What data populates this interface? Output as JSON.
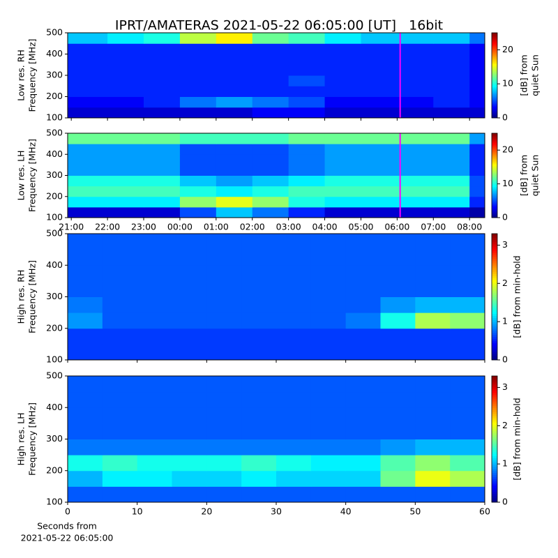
{
  "title": "IPRT/AMATERAS 2021-05-22 06:05:00 [UT]   16bit",
  "chart_data": [
    {
      "type": "heatmap",
      "colormap": "jet",
      "ylabel": [
        "Low res. RH",
        "Frequency [MHz]"
      ],
      "colorbar_label": [
        "[dB] from",
        "quiet Sun"
      ],
      "sharex": 1,
      "x_bins": [
        -3.1,
        -2,
        -1,
        0,
        1,
        2,
        3,
        4,
        5,
        6,
        7,
        8,
        8.42
      ],
      "y_bins": [
        100,
        150,
        200,
        250,
        300,
        350,
        400,
        450,
        500
      ],
      "z": [
        [
          2,
          2,
          2,
          2,
          2,
          3,
          3,
          2,
          2,
          2,
          2,
          2
        ],
        [
          3,
          3,
          4,
          6,
          7,
          6,
          5,
          3,
          3,
          3,
          4,
          3
        ],
        [
          4,
          4,
          4,
          4,
          4,
          4,
          4,
          4,
          4,
          4,
          4,
          3
        ],
        [
          4,
          4,
          4,
          4,
          4,
          4,
          5,
          4,
          4,
          4,
          4,
          3
        ],
        [
          4,
          4,
          4,
          4,
          4,
          4,
          4,
          4,
          4,
          4,
          4,
          3
        ],
        [
          4,
          4,
          4,
          4,
          4,
          4,
          4,
          4,
          4,
          4,
          4,
          3
        ],
        [
          4,
          4,
          4,
          4,
          4,
          4,
          4,
          4,
          4,
          4,
          4,
          3
        ],
        [
          8,
          9,
          10,
          14,
          16,
          12,
          11,
          9,
          8,
          8,
          8,
          6
        ]
      ],
      "ylim": [
        100,
        500
      ],
      "yticks": [
        100,
        200,
        300,
        400,
        500
      ],
      "clim": [
        0,
        25
      ],
      "cticks": [
        0,
        10,
        20
      ],
      "marker_time": 6.083,
      "marker_color": "#ff00ff"
    },
    {
      "type": "heatmap",
      "colormap": "jet",
      "ylabel": [
        "Low res. LH",
        "Frequency [MHz]"
      ],
      "colorbar_label": [
        "[dB] from",
        "quiet Sun"
      ],
      "x_bins": [
        -3.1,
        -2,
        -1,
        0,
        1,
        2,
        3,
        4,
        5,
        6,
        7,
        8,
        8.42
      ],
      "y_bins": [
        100,
        150,
        200,
        250,
        300,
        350,
        400,
        450,
        500
      ],
      "z": [
        [
          2,
          2,
          2,
          5,
          8,
          6,
          4,
          2,
          2,
          2,
          2,
          1
        ],
        [
          9,
          9,
          9,
          13,
          15,
          13,
          10,
          9,
          9,
          9,
          9,
          4
        ],
        [
          11,
          11,
          11,
          10,
          9,
          10,
          11,
          11,
          11,
          11,
          11,
          5
        ],
        [
          10,
          10,
          10,
          8,
          7,
          8,
          9,
          10,
          10,
          10,
          10,
          5
        ],
        [
          7,
          7,
          7,
          5,
          5,
          5,
          6,
          7,
          7,
          7,
          7,
          4
        ],
        [
          7,
          7,
          7,
          5,
          5,
          5,
          6,
          7,
          7,
          7,
          7,
          4
        ],
        [
          7,
          7,
          7,
          5,
          5,
          5,
          6,
          7,
          7,
          7,
          7,
          4
        ],
        [
          12,
          12,
          12,
          11,
          11,
          11,
          12,
          12,
          12,
          12,
          12,
          7
        ]
      ],
      "xlim": [
        -3.1,
        8.42
      ],
      "xticks": [
        {
          "value": -3,
          "label": "21:00"
        },
        {
          "value": -2,
          "label": "22:00"
        },
        {
          "value": -1,
          "label": "23:00"
        },
        {
          "value": 0,
          "label": "00:00"
        },
        {
          "value": 1,
          "label": "01:00"
        },
        {
          "value": 2,
          "label": "02:00"
        },
        {
          "value": 3,
          "label": "03:00"
        },
        {
          "value": 4,
          "label": "04:00"
        },
        {
          "value": 5,
          "label": "05:00"
        },
        {
          "value": 6,
          "label": "06:00"
        },
        {
          "value": 7,
          "label": "07:00"
        },
        {
          "value": 8,
          "label": "08:00"
        }
      ],
      "ylim": [
        100,
        500
      ],
      "yticks": [
        100,
        200,
        300,
        400,
        500
      ],
      "clim": [
        0,
        25
      ],
      "cticks": [
        0,
        10,
        20
      ],
      "marker_time": 6.083,
      "marker_color": "#ff00ff"
    },
    {
      "type": "heatmap",
      "colormap": "jet",
      "ylabel": [
        "High res. RH",
        "Frequency [MHz]"
      ],
      "colorbar_label": [
        "[dB] from min-hold"
      ],
      "sharex": 3,
      "x_bins": [
        0,
        5,
        10,
        15,
        20,
        25,
        30,
        35,
        40,
        45,
        50,
        55,
        60
      ],
      "y_bins": [
        100,
        150,
        200,
        250,
        300,
        350,
        400,
        450,
        500
      ],
      "z": [
        [
          0.6,
          0.6,
          0.6,
          0.6,
          0.6,
          0.6,
          0.6,
          0.6,
          0.6,
          0.6,
          0.6,
          0.6
        ],
        [
          0.6,
          0.6,
          0.6,
          0.6,
          0.6,
          0.6,
          0.6,
          0.6,
          0.6,
          0.6,
          0.6,
          0.6
        ],
        [
          0.9,
          0.7,
          0.7,
          0.7,
          0.7,
          0.7,
          0.7,
          0.7,
          0.8,
          1.3,
          1.8,
          1.7
        ],
        [
          0.8,
          0.7,
          0.7,
          0.7,
          0.7,
          0.7,
          0.7,
          0.7,
          0.7,
          0.9,
          1.0,
          1.0
        ],
        [
          0.7,
          0.7,
          0.7,
          0.7,
          0.7,
          0.7,
          0.7,
          0.7,
          0.7,
          0.7,
          0.7,
          0.7
        ],
        [
          0.7,
          0.7,
          0.7,
          0.7,
          0.7,
          0.7,
          0.7,
          0.7,
          0.7,
          0.7,
          0.7,
          0.7
        ],
        [
          0.7,
          0.7,
          0.7,
          0.7,
          0.7,
          0.7,
          0.7,
          0.7,
          0.7,
          0.7,
          0.7,
          0.7
        ],
        [
          0.7,
          0.7,
          0.7,
          0.7,
          0.7,
          0.7,
          0.7,
          0.7,
          0.7,
          0.7,
          0.7,
          0.7
        ]
      ],
      "ylim": [
        100,
        500
      ],
      "yticks": [
        100,
        200,
        300,
        400,
        500
      ],
      "clim": [
        0,
        3.3
      ],
      "cticks": [
        0,
        1,
        2,
        3
      ]
    },
    {
      "type": "heatmap",
      "colormap": "jet",
      "ylabel": [
        "High res. LH",
        "Frequency [MHz]"
      ],
      "colorbar_label": [
        "[dB] from min-hold"
      ],
      "xlabel": [
        "Seconds from",
        "2021-05-22 06:05:00"
      ],
      "x_bins": [
        0,
        5,
        10,
        15,
        20,
        25,
        30,
        35,
        40,
        45,
        50,
        55,
        60
      ],
      "y_bins": [
        100,
        150,
        200,
        250,
        300,
        350,
        400,
        450,
        500
      ],
      "z": [
        [
          0.7,
          0.7,
          0.7,
          0.7,
          0.7,
          0.7,
          0.7,
          0.7,
          0.7,
          0.7,
          0.7,
          0.7
        ],
        [
          1.0,
          1.2,
          1.2,
          1.1,
          1.1,
          1.2,
          1.1,
          1.1,
          1.1,
          1.6,
          2.0,
          1.8
        ],
        [
          1.3,
          1.4,
          1.3,
          1.3,
          1.3,
          1.4,
          1.3,
          1.2,
          1.2,
          1.5,
          1.7,
          1.5
        ],
        [
          0.8,
          0.8,
          0.8,
          0.8,
          0.8,
          0.8,
          0.8,
          0.8,
          0.8,
          0.9,
          1.0,
          1.0
        ],
        [
          0.7,
          0.7,
          0.7,
          0.7,
          0.7,
          0.7,
          0.7,
          0.7,
          0.7,
          0.7,
          0.7,
          0.7
        ],
        [
          0.7,
          0.7,
          0.7,
          0.7,
          0.7,
          0.7,
          0.7,
          0.7,
          0.7,
          0.7,
          0.7,
          0.7
        ],
        [
          0.7,
          0.7,
          0.7,
          0.7,
          0.7,
          0.7,
          0.7,
          0.7,
          0.7,
          0.7,
          0.7,
          0.7
        ],
        [
          0.7,
          0.7,
          0.7,
          0.7,
          0.7,
          0.7,
          0.7,
          0.7,
          0.7,
          0.7,
          0.7,
          0.7
        ]
      ],
      "xlim": [
        0,
        60
      ],
      "xticks": [
        0,
        10,
        20,
        30,
        40,
        50,
        60
      ],
      "ylim": [
        100,
        500
      ],
      "yticks": [
        100,
        200,
        300,
        400,
        500
      ],
      "clim": [
        0,
        3.3
      ],
      "cticks": [
        0,
        1,
        2,
        3
      ]
    }
  ]
}
